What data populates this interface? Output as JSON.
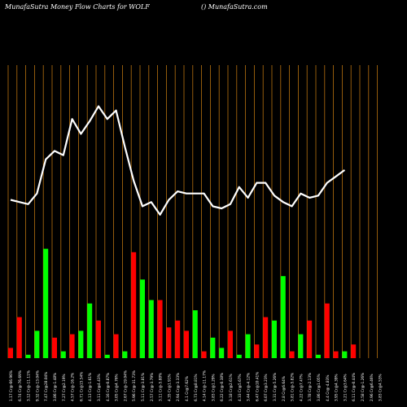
{
  "header": {
    "left": "MunafaSutra  Money Flow  Charts for WOLF",
    "right": "() MunafaSutra.com"
  },
  "colors": {
    "background": "#000000",
    "gridline": "#b8720f",
    "up_bar": "#00ff00",
    "down_bar": "#ff0000",
    "line": "#ffffff",
    "text": "#ffffff"
  },
  "chart_data": {
    "type": "bar",
    "series": [
      {
        "bar_colors": [
          "red",
          "red",
          "green",
          "green",
          "green",
          "red",
          "green",
          "red",
          "green",
          "green",
          "red",
          "green",
          "red",
          "green",
          "red",
          "green",
          "green",
          "red",
          "red",
          "red",
          "red",
          "green",
          "red",
          "green",
          "green",
          "red",
          "green",
          "green",
          "red",
          "red",
          "green",
          "green",
          "red",
          "green",
          "red",
          "green",
          "red",
          "red",
          "green",
          "red",
          "green",
          "red",
          "green"
        ],
        "values": [
          3,
          12,
          1,
          8,
          32,
          6,
          2,
          7,
          8,
          16,
          11,
          1,
          7,
          2,
          31,
          23,
          17,
          17,
          9,
          11,
          8,
          14,
          2,
          6,
          3,
          8,
          1,
          7,
          4,
          12,
          11,
          24,
          2,
          7,
          11,
          1,
          16,
          2,
          2,
          4,
          0,
          0,
          0
        ]
      },
      {
        "values": [
          77,
          76,
          75,
          80,
          96,
          100,
          98,
          115,
          108,
          114,
          121,
          115,
          119,
          102,
          86,
          74,
          76,
          70,
          77,
          81,
          80,
          80,
          80,
          74,
          73,
          75,
          83,
          78,
          85,
          85,
          79,
          76,
          74,
          80,
          78,
          79,
          85,
          88,
          91,
          0,
          0,
          0,
          0
        ]
      }
    ],
    "categories": [
      "1.17 Cr@-66.96%",
      "6.74 Cr@-76.69%",
      "3.12 Cr@-11.11%",
      "9.32 Cr@-13.04%",
      "7.47 Cr@28.04%",
      "3.86 Cr@-1.48%",
      "7.27 Cr@2.19%",
      "4.57 Cr@-16.2%",
      "6.71 Cr@15.54%",
      "4.13 Cr@-1.61%",
      "3.11 Cr@4.43%",
      "4.16 Cr@-0.87%",
      "3.05 Cr@4.76%",
      "2.67 Cr@-19.04%",
      "5.96 Cr@-31.73%",
      "5.11 Cr@-3.81%",
      "2.57 Cr@-3.79%",
      "3.11 Cr@-5.88%",
      "4.35 Cr@1.91%",
      "2.94 Cr@-3.33%",
      "4.1 Cr@7.62%",
      "6.73 Cr@8.81%",
      "4.14 Cr@-11.17%",
      "3.83 Cr@1.29%",
      "6.22 Cr@-0.38%",
      "3.18 Cr@2.61%",
      "4.33 Cr@5.67%",
      "3.44 Cr@-4.12%",
      "6.47 Cr@10.41%",
      "6.07 Cr@3.23%",
      "3.31 Cr@-5.26%",
      "2.8 Cr@6.64%",
      "5.81 Cr@-5.82%",
      "4.22 Cr@7.47%",
      "3.78 Cr@-2.13%",
      "3.86 Cr@1.05%",
      "4.4 Cr@-4.83%",
      "3.95 Cr@4.39%",
      "3.21 Cr@3.64%",
      "6.11 Cr@-0.44%",
      "2.58 Cr@-1.26%",
      "2.96 Cr@6.46%",
      "3.83 Cr@4.53%"
    ]
  }
}
